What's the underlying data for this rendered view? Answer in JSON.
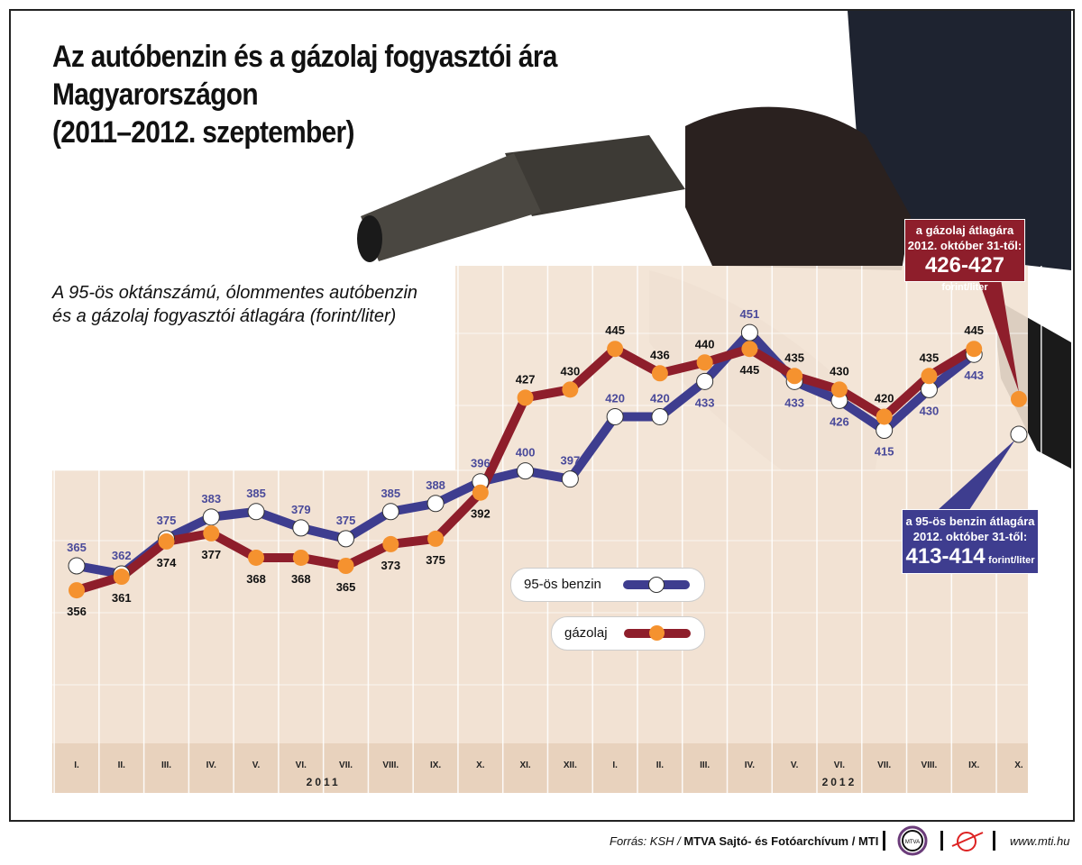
{
  "title_lines": [
    "Az autóbenzin és a gázolaj fogyasztói ára",
    "Magyarországon",
    "(2011–2012. szeptember)"
  ],
  "subtitle_lines": [
    "A 95-ös oktánszámú, ólommentes autóbenzin",
    "és a gázolaj fogyasztói átlagára (forint/liter)"
  ],
  "colors": {
    "benzin_line": "#3e3d8f",
    "gazolaj_line": "#8e1e2b",
    "gazolaj_marker": "#f5922f",
    "benzin_marker": "#ffffff",
    "panel": "#f2e2d3",
    "axis_band": "#e8d2bd"
  },
  "chart_data": {
    "type": "line",
    "categories": [
      "I.",
      "II.",
      "III.",
      "IV.",
      "V.",
      "VI.",
      "VII.",
      "VIII.",
      "IX.",
      "X.",
      "XI.",
      "XII.",
      "I.",
      "II.",
      "III.",
      "IV.",
      "V.",
      "VI.",
      "VII.",
      "VIII.",
      "IX.",
      "X."
    ],
    "year_labels": [
      "2011",
      "2012"
    ],
    "series": [
      {
        "name": "95-ös benzin",
        "values": [
          365,
          362,
          375,
          383,
          385,
          379,
          375,
          385,
          388,
          396,
          400,
          397,
          420,
          420,
          433,
          451,
          433,
          426,
          415,
          430,
          443,
          413.5
        ]
      },
      {
        "name": "gázolaj",
        "values": [
          356,
          361,
          374,
          377,
          368,
          368,
          365,
          373,
          375,
          392,
          427,
          430,
          445,
          436,
          440,
          445,
          435,
          430,
          420,
          435,
          445,
          426.5
        ]
      }
    ],
    "legend_placement": "center",
    "grid": true
  },
  "callouts": {
    "gazolaj": {
      "line1": "a gázolaj átlagára",
      "line2": "2012. október 31-től:",
      "value": "426-427",
      "unit": "forint/liter"
    },
    "benzin": {
      "line1": "a 95-ös benzin átlagára",
      "line2": "2012. október 31-től:",
      "value": "413-414",
      "unit": "forint/liter"
    }
  },
  "legend": {
    "benzin": "95-ös benzin",
    "gazolaj": "gázolaj"
  },
  "footer": {
    "source_prefix": "Forrás: KSH / ",
    "source_bold": "MTVA Sajtó- és Fotóarchívum / MTI",
    "website": "www.mti.hu",
    "logo_text": "MTVA"
  }
}
